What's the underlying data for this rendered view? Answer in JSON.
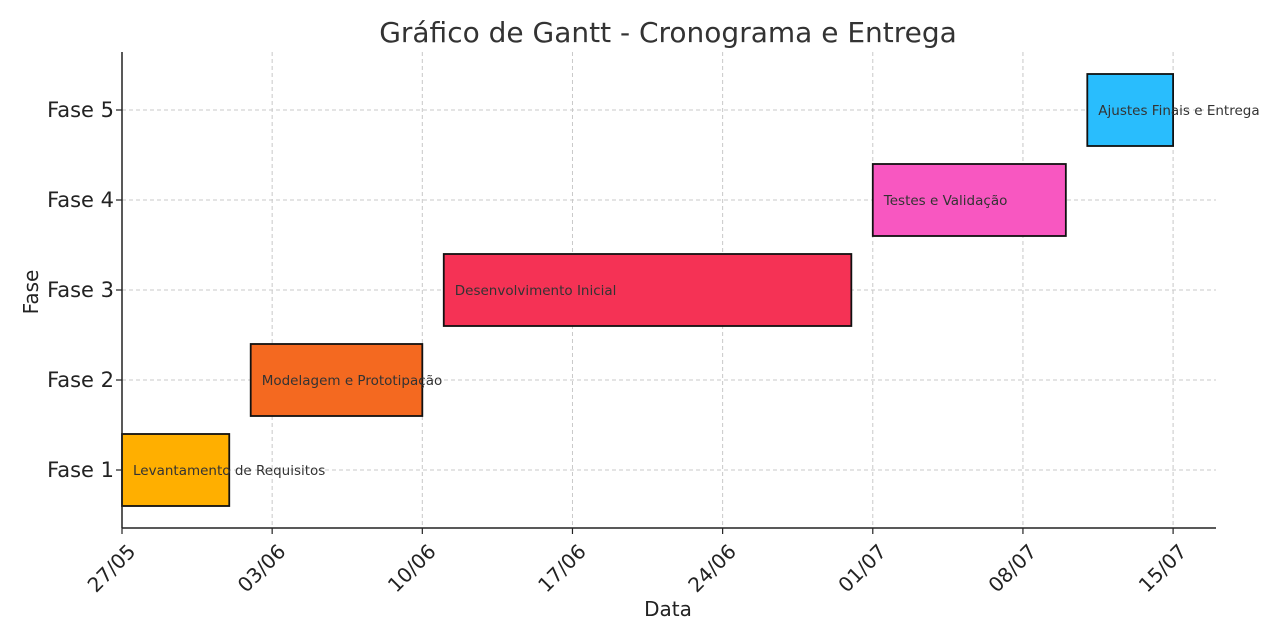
{
  "chart_data": {
    "type": "gantt",
    "title": "Gráfico de Gantt - Cronograma e Entrega",
    "xlabel": "Data",
    "ylabel": "Fase",
    "x_ticks": [
      "27/05",
      "03/06",
      "10/06",
      "17/06",
      "24/06",
      "01/07",
      "08/07",
      "15/07"
    ],
    "y_ticks": [
      "Fase 1",
      "Fase 2",
      "Fase 3",
      "Fase 4",
      "Fase 5"
    ],
    "xlim": [
      "27/05",
      "17/07"
    ],
    "grid": true,
    "tasks": [
      {
        "phase": "Fase 1",
        "label": "Levantamento de Requisitos",
        "start": "27/05",
        "end": "01/06",
        "color": "#FFAF00"
      },
      {
        "phase": "Fase 2",
        "label": "Modelagem e Prototipação",
        "start": "02/06",
        "end": "10/06",
        "color": "#F46920"
      },
      {
        "phase": "Fase 3",
        "label": "Desenvolvimento Inicial",
        "start": "11/06",
        "end": "30/06",
        "color": "#F53255"
      },
      {
        "phase": "Fase 4",
        "label": "Testes e Validação",
        "start": "01/07",
        "end": "10/07",
        "color": "#F857C1"
      },
      {
        "phase": "Fase 5",
        "label": "Ajustes Finais e Entrega",
        "start": "11/07",
        "end": "15/07",
        "color": "#29BDFD"
      }
    ]
  }
}
